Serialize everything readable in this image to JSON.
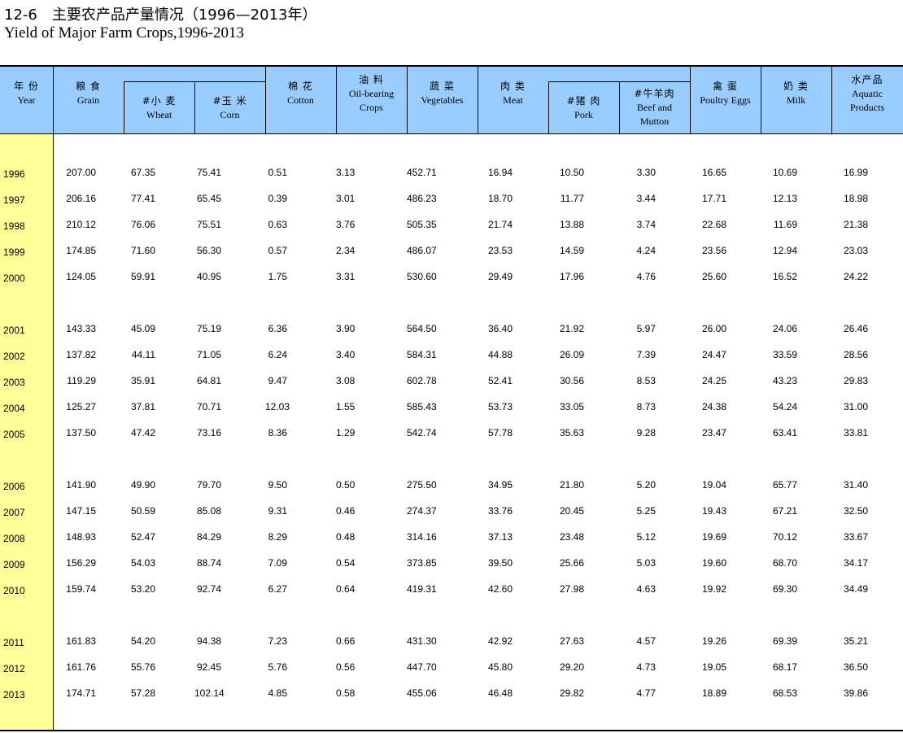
{
  "title": "12-6　主要农产品产量情况（1996—2013年）",
  "subtitle": "Yield of Major Farm Crops,1996-2013",
  "columns": [
    {
      "zh": "年 份",
      "en": "Year"
    },
    {
      "zh": "粮 食",
      "en": "Grain"
    },
    {
      "zh": "#小 麦",
      "en": "Wheat"
    },
    {
      "zh": "#玉 米",
      "en": "Corn"
    },
    {
      "zh": "棉 花",
      "en": "Cotton"
    },
    {
      "zh": "油 料",
      "en": "Oil-bearing Crops"
    },
    {
      "zh": "蔬 菜",
      "en": "Vegetables"
    },
    {
      "zh": "肉 类",
      "en": "Meat"
    },
    {
      "zh": "#猪 肉",
      "en": "Pork"
    },
    {
      "zh": "#牛羊肉",
      "en": "Beef and Mutton"
    },
    {
      "zh": "禽 蛋",
      "en": "Poultry Eggs"
    },
    {
      "zh": "奶 类",
      "en": "Milk"
    },
    {
      "zh": "水产品",
      "en": "Aquatic Products"
    }
  ],
  "colors": {
    "header_bg": "#99ccff",
    "year_bg": "#ffff99"
  },
  "rows": [
    [
      "1996",
      "207.00",
      "67.35",
      "75.41",
      "0.51",
      "3.13",
      "452.71",
      "16.94",
      "10.50",
      "3.30",
      "16.65",
      "10.69",
      "16.99"
    ],
    [
      "1997",
      "206.16",
      "77.41",
      "65.45",
      "0.39",
      "3.01",
      "486.23",
      "18.70",
      "11.77",
      "3.44",
      "17.71",
      "12.13",
      "18.98"
    ],
    [
      "1998",
      "210.12",
      "76.06",
      "75.51",
      "0.63",
      "3.76",
      "505.35",
      "21.74",
      "13.88",
      "3.74",
      "22.68",
      "11.69",
      "21.38"
    ],
    [
      "1999",
      "174.85",
      "71.60",
      "56.30",
      "0.57",
      "2.34",
      "486.07",
      "23.53",
      "14.59",
      "4.24",
      "23.56",
      "12.94",
      "23.03"
    ],
    [
      "2000",
      "124.05",
      "59.91",
      "40.95",
      "1.75",
      "3.31",
      "530.60",
      "29.49",
      "17.96",
      "4.76",
      "25.60",
      "16.52",
      "24.22"
    ],
    [
      "2001",
      "143.33",
      "45.09",
      "75.19",
      "6.36",
      "3.90",
      "564.50",
      "36.40",
      "21.92",
      "5.97",
      "26.00",
      "24.06",
      "26.46"
    ],
    [
      "2002",
      "137.82",
      "44.11",
      "71.05",
      "6.24",
      "3.40",
      "584.31",
      "44.88",
      "26.09",
      "7.39",
      "24.47",
      "33.59",
      "28.56"
    ],
    [
      "2003",
      "119.29",
      "35.91",
      "64.81",
      "9.47",
      "3.08",
      "602.78",
      "52.41",
      "30.56",
      "8.53",
      "24.25",
      "43.23",
      "29.83"
    ],
    [
      "2004",
      "125.27",
      "37.81",
      "70.71",
      "12.03",
      "1.55",
      "585.43",
      "53.73",
      "33.05",
      "8.73",
      "24.38",
      "54.24",
      "31.00"
    ],
    [
      "2005",
      "137.50",
      "47.42",
      "73.16",
      "8.36",
      "1.29",
      "542.74",
      "57.78",
      "35.63",
      "9.28",
      "23.47",
      "63.41",
      "33.81"
    ],
    [
      "2006",
      "141.90",
      "49.90",
      "79.70",
      "9.50",
      "0.50",
      "275.50",
      "34.95",
      "21.80",
      "5.20",
      "19.04",
      "65.77",
      "31.40"
    ],
    [
      "2007",
      "147.15",
      "50.59",
      "85.08",
      "9.31",
      "0.46",
      "274.37",
      "33.76",
      "20.45",
      "5.25",
      "19.43",
      "67.21",
      "32.50"
    ],
    [
      "2008",
      "148.93",
      "52.47",
      "84.29",
      "8.29",
      "0.48",
      "314.16",
      "37.13",
      "23.48",
      "5.12",
      "19.69",
      "70.12",
      "33.67"
    ],
    [
      "2009",
      "156.29",
      "54.03",
      "88.74",
      "7.09",
      "0.54",
      "373.85",
      "39.50",
      "25.66",
      "5.03",
      "19.60",
      "68.70",
      "34.17"
    ],
    [
      "2010",
      "159.74",
      "53.20",
      "92.74",
      "6.27",
      "0.64",
      "419.31",
      "42.60",
      "27.98",
      "4.63",
      "19.92",
      "69.30",
      "34.49"
    ],
    [
      "2011",
      "161.83",
      "54.20",
      "94.38",
      "7.23",
      "0.66",
      "431.30",
      "42.92",
      "27.63",
      "4.57",
      "19.26",
      "69.39",
      "35.21"
    ],
    [
      "2012",
      "161.76",
      "55.76",
      "92.45",
      "5.76",
      "0.56",
      "447.70",
      "45.80",
      "29.20",
      "4.73",
      "19.05",
      "68.17",
      "36.50"
    ],
    [
      "2013",
      "174.71",
      "57.28",
      "102.14",
      "4.85",
      "0.58",
      "455.06",
      "46.48",
      "29.82",
      "4.77",
      "18.89",
      "68.53",
      "39.86"
    ]
  ]
}
